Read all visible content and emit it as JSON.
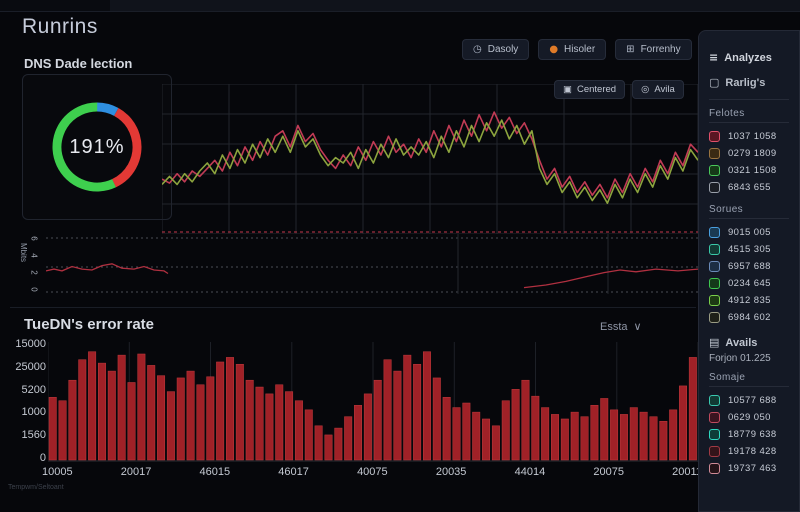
{
  "header": {
    "title": "Runrins",
    "buttons": [
      {
        "name": "dasoly-button",
        "label": "Dasoly",
        "icon": "alarm-icon",
        "icon_color": "#aeb6c6"
      },
      {
        "name": "hisoler-button",
        "label": "Hisoler",
        "icon": "dot-icon",
        "icon_color": "#e07b28"
      },
      {
        "name": "forrenhy-button",
        "label": "Forrenhy",
        "icon": "grid-icon",
        "icon_color": "#aeb6c6"
      }
    ]
  },
  "line_toolbar": [
    {
      "name": "centered-button",
      "label": "Centered",
      "icon": "panel-icon"
    },
    {
      "name": "avila-button",
      "label": "Avila",
      "icon": "target-icon"
    }
  ],
  "bar_section": {
    "dropdown_label": "Essta"
  },
  "footer": {
    "text": "Tempwm/Seltoant"
  },
  "sidebar": {
    "title": "Analyzes",
    "filter_label": "Rarlig's",
    "sections": [
      {
        "type": "group",
        "title": "Felotes",
        "items": [
          {
            "fill": "#5a1622",
            "border": "#e0506a",
            "value": "1037 1058"
          },
          {
            "fill": "#3a2a14",
            "border": "#9a7440",
            "value": "0279 1809"
          },
          {
            "fill": "#163a18",
            "border": "#4ac95a",
            "value": "0321 1508"
          },
          {
            "fill": "#1a1d24",
            "border": "#9aa0aa",
            "value": "6843 655"
          }
        ]
      },
      {
        "type": "group",
        "title": "Sorues",
        "items": [
          {
            "fill": "#1a3a52",
            "border": "#4aa0e0",
            "value": "9015 005"
          },
          {
            "fill": "#123a34",
            "border": "#3ac9a8",
            "value": "4515 305"
          },
          {
            "fill": "#1c2e44",
            "border": "#6a8ab8",
            "value": "6957 688"
          },
          {
            "fill": "#143a1a",
            "border": "#3fc94f",
            "value": "0234 645"
          },
          {
            "fill": "#1d3a14",
            "border": "#7ad04a",
            "value": "4912 835"
          },
          {
            "fill": "#1e2018",
            "border": "#9a9c84",
            "value": "6984 602"
          }
        ]
      },
      {
        "type": "icon-label",
        "label": "Avails",
        "icon": "calendar-icon"
      },
      {
        "type": "text",
        "label": "Forjon 01.225"
      },
      {
        "type": "group",
        "title": "Somaje",
        "items": [
          {
            "fill": "#123a34",
            "border": "#3ac9b0",
            "value": "10577 688"
          },
          {
            "fill": "#3a1420",
            "border": "#c04a5e",
            "value": "0629 050"
          },
          {
            "fill": "#0e3d38",
            "border": "#2fd9c0",
            "value": "18779 638"
          },
          {
            "fill": "#33141a",
            "border": "#a03a44",
            "value": "19178 428"
          },
          {
            "fill": "#241318",
            "border": "#d08a96",
            "value": "19737 463"
          }
        ]
      }
    ]
  },
  "colors": {
    "background": "#06070b",
    "panel": "#141925",
    "grid": "#22252c",
    "bar_fill": "#a02127",
    "bar_edge": "#c13b3e",
    "line_red": "#c13b55",
    "line_green": "#8ca43e",
    "threshold_red": "#a03040",
    "accent_orange": "#e07b28"
  },
  "chart_data": [
    {
      "type": "pie",
      "variant": "donut",
      "title": "DNS Dade lection",
      "center_label": "191%",
      "segments": [
        {
          "name": "blue",
          "pct": 8,
          "color": "#2f8fe0"
        },
        {
          "name": "red",
          "pct": 35,
          "color": "#e33935"
        },
        {
          "name": "green",
          "pct": 57,
          "color": "#3ecf4e"
        }
      ]
    },
    {
      "type": "line",
      "title": "dual-series activity",
      "ylim": [
        0,
        100
      ],
      "grid": true,
      "threshold": {
        "style": "dashed",
        "color": "#a03040",
        "position": "bottom"
      },
      "series": [
        {
          "name": "red",
          "color": "#c13b55",
          "values": [
            38,
            35,
            42,
            36,
            44,
            40,
            46,
            52,
            44,
            58,
            48,
            62,
            52,
            66,
            56,
            70,
            74,
            62,
            78,
            66,
            72,
            60,
            52,
            46,
            56,
            48,
            62,
            52,
            66,
            56,
            70,
            58,
            64,
            54,
            68,
            58,
            74,
            62,
            78,
            66,
            82,
            70,
            86,
            74,
            88,
            76,
            84,
            72,
            80,
            68,
            52,
            38,
            46,
            32,
            40,
            28,
            36,
            26,
            34,
            24,
            38,
            28,
            42,
            32,
            46,
            36,
            52,
            42,
            58,
            48,
            64,
            58
          ]
        },
        {
          "name": "green",
          "color": "#8ca43e",
          "values": [
            34,
            40,
            34,
            42,
            36,
            44,
            50,
            42,
            56,
            46,
            60,
            50,
            64,
            54,
            68,
            58,
            70,
            58,
            74,
            62,
            68,
            56,
            48,
            54,
            50,
            58,
            46,
            60,
            50,
            64,
            54,
            68,
            56,
            62,
            56,
            66,
            54,
            70,
            58,
            74,
            62,
            78,
            66,
            80,
            70,
            82,
            68,
            78,
            64,
            74,
            46,
            34,
            42,
            28,
            36,
            24,
            32,
            22,
            30,
            20,
            34,
            24,
            38,
            28,
            42,
            32,
            48,
            38,
            54,
            44,
            60,
            52
          ]
        }
      ]
    },
    {
      "type": "line",
      "title": "mini-trend",
      "ylabel": "Mbits",
      "yticks": [
        "6",
        "4",
        "2",
        "0"
      ],
      "ylim": [
        0,
        6
      ],
      "color": "#b03040",
      "segments": [
        [
          [
            0,
            2.4
          ],
          [
            8,
            2.6
          ],
          [
            16,
            2.4
          ],
          [
            26,
            2.9
          ],
          [
            36,
            2.6
          ],
          [
            46,
            2.5
          ],
          [
            56,
            3.0
          ],
          [
            66,
            3.2
          ],
          [
            76,
            2.7
          ],
          [
            88,
            2.6
          ],
          [
            98,
            2.9
          ],
          [
            108,
            2.5
          ],
          [
            118,
            2.4
          ],
          [
            122,
            2.1
          ]
        ],
        [
          [
            478,
            0.5
          ],
          [
            500,
            0.8
          ],
          [
            520,
            1.2
          ],
          [
            542,
            1.8
          ],
          [
            558,
            2.2
          ],
          [
            574,
            2.5
          ],
          [
            590,
            2.3
          ],
          [
            610,
            2.6
          ],
          [
            632,
            2.4
          ],
          [
            652,
            2.6
          ]
        ]
      ]
    },
    {
      "type": "bar",
      "title": "TueDN's error rate",
      "y_ticks": [
        "15000",
        "25000",
        "5200",
        "1000",
        "1560",
        "0"
      ],
      "x_ticks": [
        "10005",
        "20017",
        "46015",
        "46017",
        "40075",
        "20035",
        "44014",
        "20075",
        "20011"
      ],
      "color": "#a02127",
      "values": [
        55,
        52,
        70,
        88,
        95,
        85,
        78,
        92,
        68,
        93,
        83,
        74,
        60,
        72,
        78,
        66,
        73,
        86,
        90,
        84,
        70,
        64,
        58,
        66,
        60,
        52,
        44,
        30,
        22,
        28,
        38,
        48,
        58,
        70,
        88,
        78,
        92,
        84,
        95,
        72,
        55,
        46,
        50,
        42,
        36,
        30,
        52,
        62,
        70,
        56,
        46,
        40,
        36,
        42,
        38,
        48,
        54,
        44,
        40,
        46,
        42,
        38,
        34,
        44,
        65,
        90
      ]
    }
  ]
}
